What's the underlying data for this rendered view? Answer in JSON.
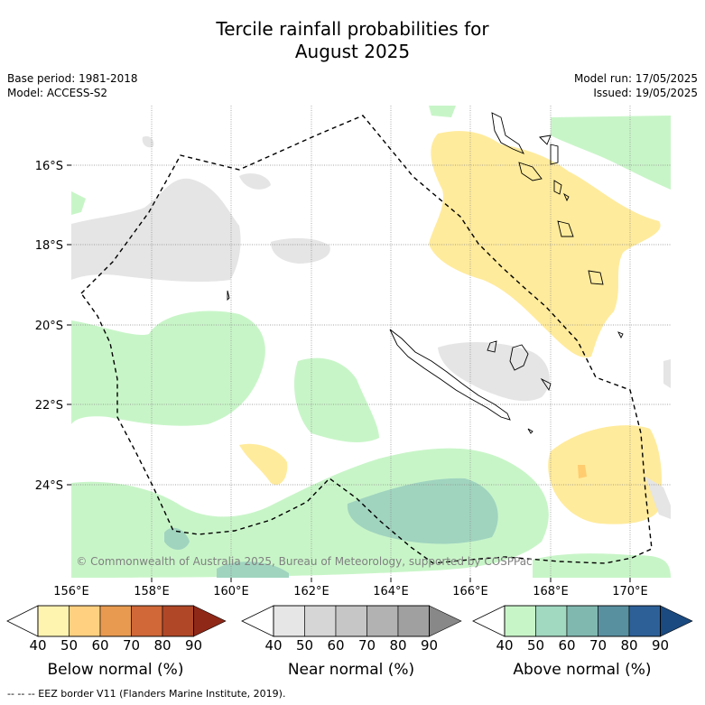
{
  "title_line1": "Tercile rainfall probabilities for",
  "title_line2": "August 2025",
  "meta": {
    "base_period": "Base period: 1981-2018",
    "model": "Model: ACCESS-S2",
    "model_run": "Model run: 17/05/2025",
    "issued": "Issued: 19/05/2025"
  },
  "map": {
    "lon_labels": [
      "156°E",
      "158°E",
      "160°E",
      "162°E",
      "164°E",
      "166°E",
      "168°E",
      "170°E"
    ],
    "lat_labels": [
      "16°S",
      "18°S",
      "20°S",
      "22°S",
      "24°S"
    ],
    "copyright": "© Commonwealth of Australia 2025, Bureau of Meteorology, supported by COSPPac"
  },
  "legends": [
    {
      "name": "Below normal (%)",
      "ticks": [
        "40",
        "50",
        "60",
        "70",
        "80",
        "90"
      ],
      "colors": [
        "#fff3b0",
        "#ffd080",
        "#e89a50",
        "#d06838",
        "#b04828",
        "#902818"
      ]
    },
    {
      "name": "Near normal (%)",
      "ticks": [
        "40",
        "50",
        "60",
        "70",
        "80",
        "90"
      ],
      "colors": [
        "#e6e6e6",
        "#d6d6d6",
        "#c6c6c6",
        "#b2b2b2",
        "#a0a0a0",
        "#888888"
      ]
    },
    {
      "name": "Above normal (%)",
      "ticks": [
        "40",
        "50",
        "60",
        "70",
        "80",
        "90"
      ],
      "colors": [
        "#c8f5c8",
        "#a0d8c0",
        "#80b8b0",
        "#5890a0",
        "#2e6098",
        "#1a4a80"
      ]
    }
  ],
  "footer": "-- -- -- EEZ border V11 (Flanders Marine Institute, 2019)."
}
